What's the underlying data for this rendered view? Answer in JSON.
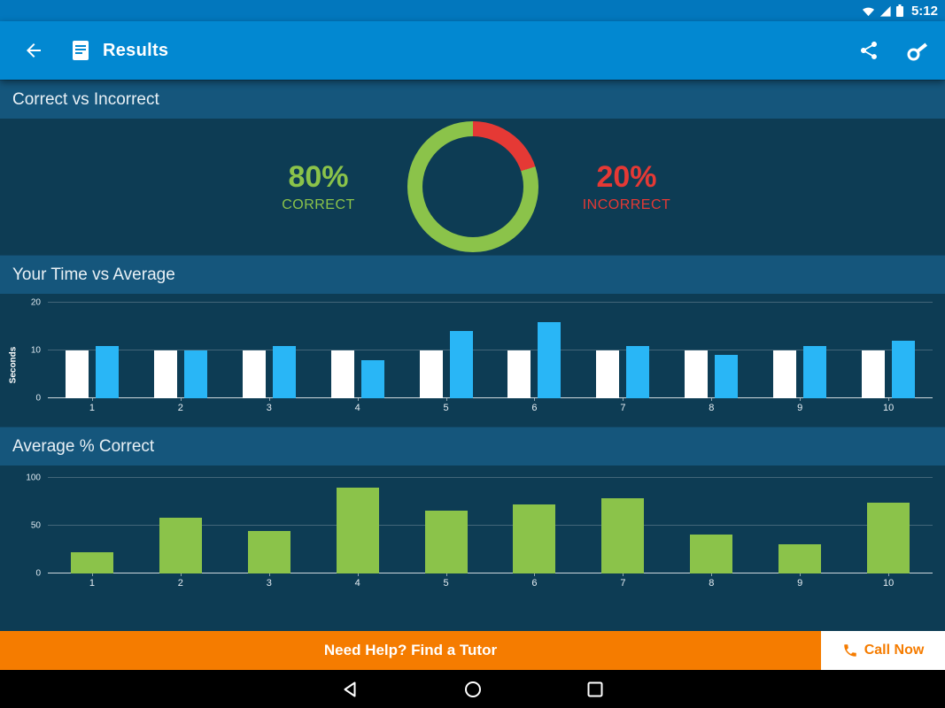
{
  "status_bar": {
    "time": "5:12"
  },
  "app_bar": {
    "title": "Results"
  },
  "sections": {
    "correct_incorrect": {
      "header": "Correct vs Incorrect"
    },
    "time_vs_average": {
      "header": "Your Time vs Average"
    },
    "average_correct": {
      "header": "Average % Correct"
    }
  },
  "donut": {
    "correct_pct": "80%",
    "correct_label": "CORRECT",
    "incorrect_pct": "20%",
    "incorrect_label": "INCORRECT"
  },
  "chart_data": [
    {
      "type": "pie",
      "style": "donut",
      "title": "Correct vs Incorrect",
      "slices": [
        {
          "label": "Correct",
          "value": 80,
          "color": "#8BC34A"
        },
        {
          "label": "Incorrect",
          "value": 20,
          "color": "#E53935"
        }
      ]
    },
    {
      "type": "bar",
      "title": "Your Time vs Average",
      "ylabel": "Seconds",
      "categories": [
        "1",
        "2",
        "3",
        "4",
        "5",
        "6",
        "7",
        "8",
        "9",
        "10"
      ],
      "series": [
        {
          "name": "Your Time",
          "color": "#FFFFFF",
          "values": [
            10,
            10,
            10,
            10,
            10,
            10,
            10,
            10,
            10,
            10
          ]
        },
        {
          "name": "Average",
          "color": "#29B6F6",
          "values": [
            11,
            10,
            11,
            8,
            14,
            16,
            11,
            9,
            11,
            12
          ]
        }
      ],
      "ylim": [
        0,
        20
      ],
      "yticks": [
        0,
        10,
        20
      ],
      "grid": true,
      "legend": "none"
    },
    {
      "type": "bar",
      "title": "Average % Correct",
      "ylabel": "",
      "categories": [
        "1",
        "2",
        "3",
        "4",
        "5",
        "6",
        "7",
        "8",
        "9",
        "10"
      ],
      "series": [
        {
          "name": "Average % Correct",
          "color": "#8BC34A",
          "values": [
            22,
            58,
            44,
            90,
            66,
            72,
            79,
            41,
            31,
            74
          ]
        }
      ],
      "ylim": [
        0,
        100
      ],
      "yticks": [
        0,
        50,
        100
      ],
      "grid": true,
      "legend": "none"
    }
  ],
  "footer": {
    "tutor_label": "Need Help? Find a Tutor",
    "call_label": "Call Now"
  },
  "colors": {
    "correct_green": "#8BC34A",
    "incorrect_red": "#E53935",
    "average_blue": "#29B6F6",
    "app_bar_blue": "#0288D1",
    "banner_orange": "#F57C00",
    "content_bg": "#0D3C54",
    "header_bg": "#15567C"
  }
}
